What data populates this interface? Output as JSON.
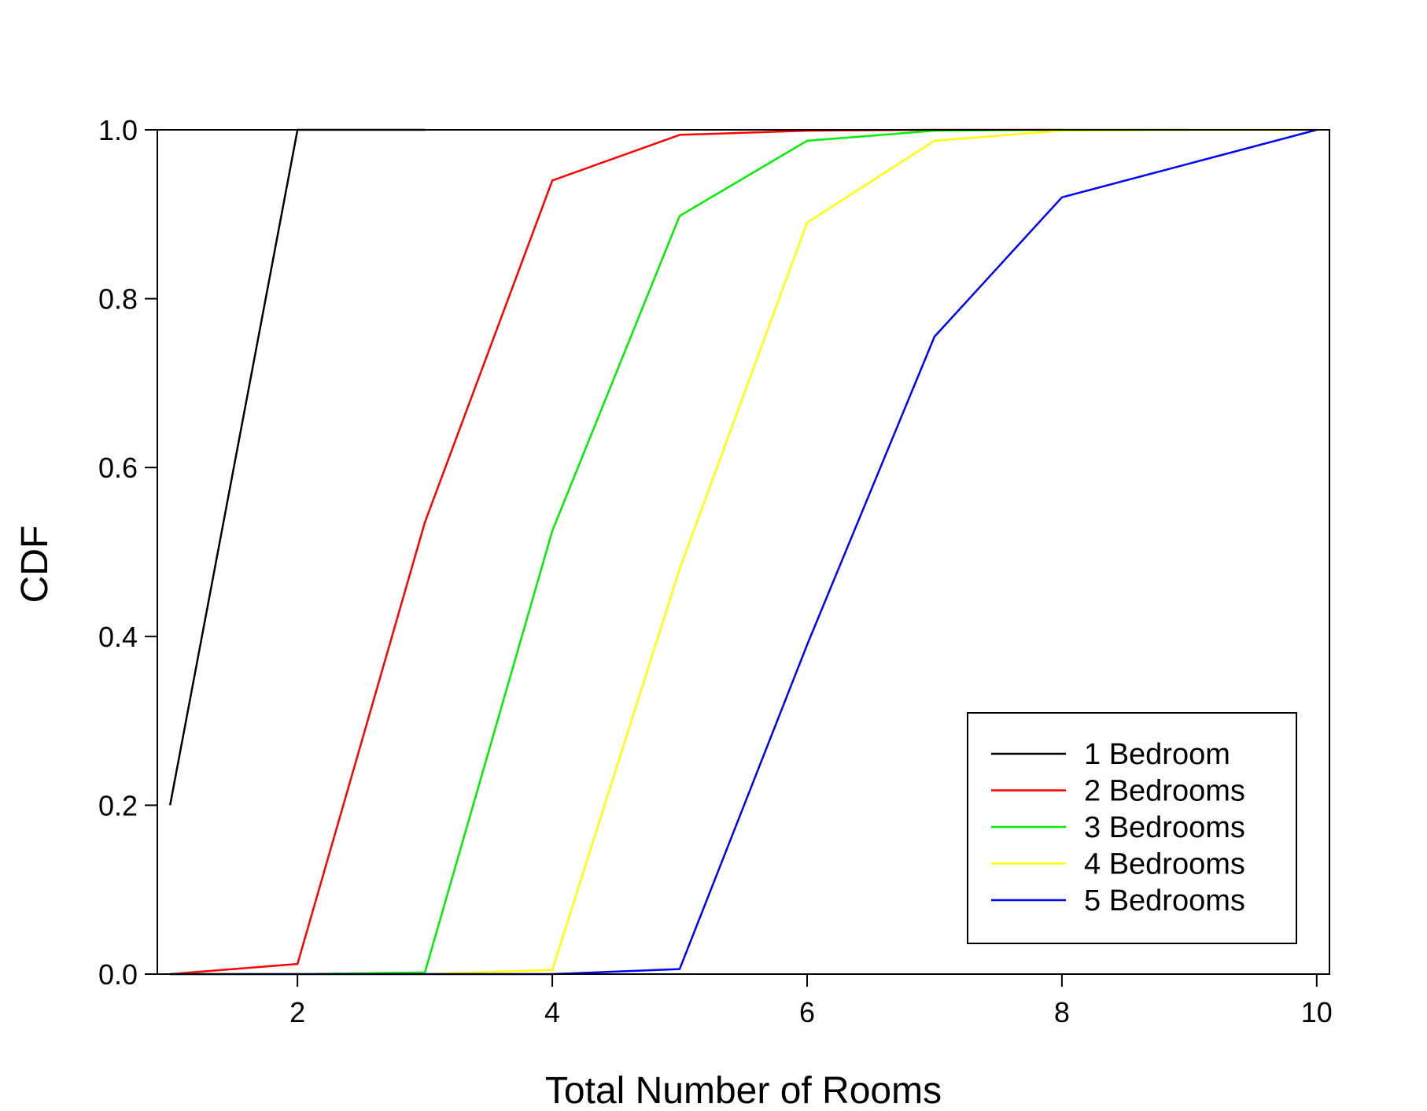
{
  "chart_data": {
    "type": "line",
    "title": "",
    "xlabel": "Total Number of Rooms",
    "ylabel": "CDF",
    "xlim": [
      0.9,
      10.1
    ],
    "ylim": [
      0,
      1
    ],
    "xticks": [
      2,
      4,
      6,
      8,
      10
    ],
    "yticks": [
      0.0,
      0.2,
      0.4,
      0.6,
      0.8,
      1.0
    ],
    "xtick_labels": [
      "2",
      "4",
      "6",
      "8",
      "10"
    ],
    "ytick_labels": [
      "0.0",
      "0.2",
      "0.4",
      "0.6",
      "0.8",
      "1.0"
    ],
    "grid": false,
    "legend_position": "bottom-right",
    "series": [
      {
        "name": "1 Bedroom",
        "color": "#000000",
        "x": [
          1,
          2,
          3
        ],
        "y": [
          0.2,
          1.0,
          1.0
        ]
      },
      {
        "name": "2 Bedrooms",
        "color": "#ff0000",
        "x": [
          1,
          2,
          3,
          4,
          5,
          6,
          7,
          8
        ],
        "y": [
          0.0,
          0.012,
          0.535,
          0.94,
          0.994,
          0.999,
          1.0,
          1.0
        ]
      },
      {
        "name": "3 Bedrooms",
        "color": "#00ee00",
        "x": [
          1,
          2,
          3,
          4,
          5,
          6,
          7,
          8,
          9
        ],
        "y": [
          0.0,
          0.0,
          0.002,
          0.525,
          0.898,
          0.987,
          0.999,
          1.0,
          1.0
        ]
      },
      {
        "name": "4 Bedrooms",
        "color": "#ffff00",
        "x": [
          1,
          2,
          3,
          4,
          5,
          6,
          7,
          8,
          9,
          10
        ],
        "y": [
          0.0,
          0.0,
          0.0,
          0.005,
          0.48,
          0.89,
          0.987,
          0.999,
          1.0,
          1.0
        ]
      },
      {
        "name": "5 Bedrooms",
        "color": "#0000ff",
        "x": [
          1,
          2,
          3,
          4,
          5,
          6,
          7,
          8,
          9,
          10
        ],
        "y": [
          0.0,
          0.0,
          0.0,
          0.0,
          0.006,
          0.39,
          0.755,
          0.92,
          0.96,
          1.0
        ]
      }
    ]
  }
}
